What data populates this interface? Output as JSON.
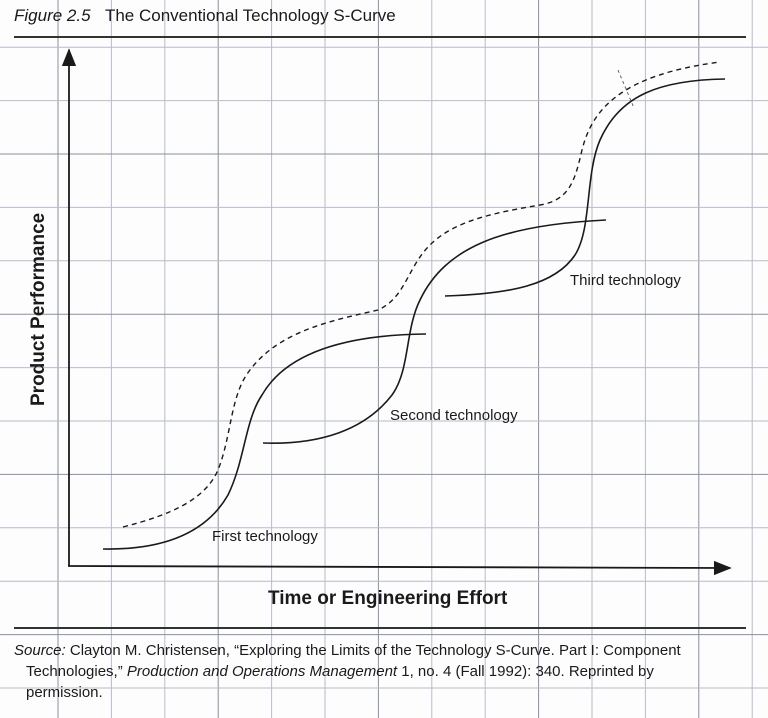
{
  "figure": {
    "number": "Figure 2.5",
    "title": "The Conventional Technology S-Curve"
  },
  "axes": {
    "x_label": "Time or Engineering Effort",
    "y_label": "Product Performance"
  },
  "curves": [
    {
      "label": "First technology",
      "style": "solid"
    },
    {
      "label": "Second technology",
      "style": "solid"
    },
    {
      "label": "Third technology",
      "style": "solid"
    },
    {
      "label": "",
      "style": "dashed"
    }
  ],
  "caption": {
    "source_label": "Source:",
    "part1": "Clayton M. Christensen, “Exploring the Limits of the Technology S-Curve. Part I: Component",
    "part2": "Technologies,”",
    "journal": "Production and Operations Management",
    "part3": "1, no. 4 (Fall 1992): 340. Reprinted by",
    "part4": "permission."
  },
  "colors": {
    "ink": "#1a1a1a",
    "grid": "#b8bccb",
    "grid_major": "#8a8ea4"
  }
}
